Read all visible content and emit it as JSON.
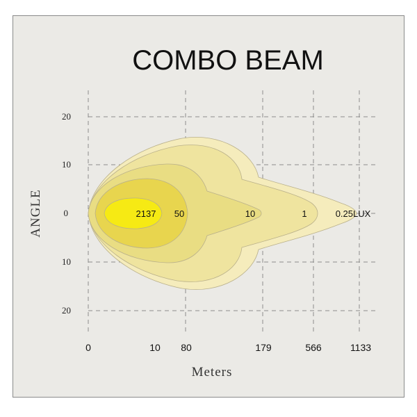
{
  "chart_data": {
    "type": "contour",
    "title": "COMBO  BEAM",
    "xlabel": "Meters",
    "ylabel": "ANGLE",
    "x_ticks": [
      "0",
      "10",
      "80",
      "179",
      "566",
      "1133"
    ],
    "y_ticks": [
      "20",
      "10",
      "0",
      "10",
      "20"
    ],
    "grid": true,
    "zones": [
      {
        "label": "0.25LUX",
        "lux": 0.25,
        "distance": "1133",
        "color": "#f5ecbc"
      },
      {
        "label": "1",
        "lux": 1,
        "distance": "566",
        "color": "#efe49f"
      },
      {
        "label": "10",
        "lux": 10,
        "distance": "179",
        "color": "#e9dd83"
      },
      {
        "label": "50",
        "lux": 50,
        "distance": "80",
        "color": "#e8d54e"
      },
      {
        "label": "2137",
        "lux": 2137,
        "distance": "10",
        "color": "#f6ea14"
      }
    ]
  }
}
